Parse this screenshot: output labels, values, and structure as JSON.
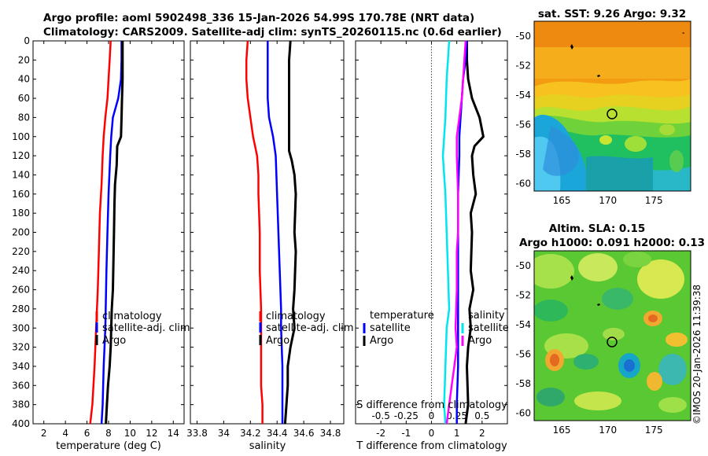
{
  "header": {
    "title_line1": "Argo profile: aoml 5902498_336 15-Jan-2026 54.99S 170.78E (NRT data)",
    "title_line2": "Climatology: CARS2009. Satellite-adj clim: synTS_20260115.nc (0.6d earlier)",
    "watermark": "©IMOS 20-Jan-2026 11:39:38"
  },
  "colors": {
    "climatology": "#ff0000",
    "satellite": "#0000ff",
    "argo": "#000000",
    "t_sat_diff": "#00e5ee",
    "s_diff": "#ff00ff",
    "zero_line": "#444444"
  },
  "chart_data": [
    {
      "type": "line",
      "name": "temperature-panel",
      "xlabel": "temperature (deg C)",
      "ylabel": "",
      "xlim": [
        1,
        15
      ],
      "ylim": [
        400,
        0
      ],
      "xticks": [
        "2",
        "4",
        "6",
        "8",
        "10",
        "12",
        "14"
      ],
      "xtick_values": [
        2,
        4,
        6,
        8,
        10,
        12,
        14
      ],
      "yticks": [
        "0",
        "20",
        "40",
        "60",
        "80",
        "100",
        "120",
        "140",
        "160",
        "180",
        "200",
        "220",
        "240",
        "260",
        "280",
        "300",
        "320",
        "340",
        "360",
        "380",
        "400"
      ],
      "ytick_values": [
        0,
        20,
        40,
        60,
        80,
        100,
        120,
        140,
        160,
        180,
        200,
        220,
        240,
        260,
        280,
        300,
        320,
        340,
        360,
        380,
        400
      ],
      "legend": [
        "climatology",
        "satellite-adj. clim",
        "Argo"
      ],
      "series": [
        {
          "name": "climatology",
          "color": "climatology",
          "x": [
            8.2,
            8.1,
            8.0,
            7.9,
            7.7,
            7.55,
            7.45,
            7.35,
            7.2,
            7.1,
            7.0,
            6.85,
            6.7,
            6.5,
            6.3
          ],
          "y": [
            0,
            20,
            40,
            60,
            80,
            100,
            120,
            150,
            180,
            220,
            260,
            300,
            340,
            380,
            400
          ]
        },
        {
          "name": "satellite-adj. clim",
          "color": "satellite",
          "x": [
            9.2,
            9.2,
            9.15,
            8.9,
            8.4,
            8.25,
            8.15,
            8.0,
            7.9,
            7.8,
            7.7,
            7.55,
            7.45,
            7.35
          ],
          "y": [
            0,
            20,
            40,
            60,
            80,
            100,
            120,
            160,
            200,
            240,
            300,
            340,
            380,
            400
          ]
        },
        {
          "name": "Argo",
          "color": "argo",
          "x": [
            9.3,
            9.3,
            9.3,
            9.25,
            9.2,
            9.15,
            8.8,
            8.75,
            8.6,
            8.55,
            8.5,
            8.45,
            8.4,
            8.3,
            8.25,
            8.2,
            8.1,
            7.95,
            7.85,
            7.75
          ],
          "y": [
            0,
            20,
            40,
            60,
            80,
            100,
            110,
            130,
            150,
            170,
            200,
            230,
            260,
            280,
            300,
            320,
            340,
            360,
            380,
            400
          ]
        }
      ]
    },
    {
      "type": "line",
      "name": "salinity-panel",
      "xlabel": "salinity",
      "ylabel": "",
      "xlim": [
        33.75,
        34.9
      ],
      "ylim": [
        400,
        0
      ],
      "xticks": [
        "33.8",
        "34",
        "34.2",
        "34.4",
        "34.6",
        "34.8"
      ],
      "xtick_values": [
        33.8,
        34.0,
        34.2,
        34.4,
        34.6,
        34.8
      ],
      "legend": [
        "climatology",
        "satellite-adj. clim",
        "Argo"
      ],
      "series": [
        {
          "name": "climatology",
          "color": "climatology",
          "x": [
            34.18,
            34.17,
            34.17,
            34.18,
            34.2,
            34.22,
            34.25,
            34.26,
            34.26,
            34.27,
            34.27,
            34.28,
            34.28,
            34.28,
            34.29,
            34.29
          ],
          "y": [
            0,
            20,
            40,
            60,
            80,
            100,
            120,
            140,
            160,
            200,
            240,
            280,
            320,
            360,
            380,
            400
          ]
        },
        {
          "name": "satellite-adj. clim",
          "color": "satellite",
          "x": [
            34.33,
            34.33,
            34.33,
            34.33,
            34.34,
            34.37,
            34.39,
            34.4,
            34.41,
            34.42,
            34.43,
            34.43,
            34.44,
            34.44,
            34.44
          ],
          "y": [
            0,
            20,
            40,
            60,
            80,
            100,
            120,
            160,
            200,
            240,
            280,
            300,
            340,
            380,
            400
          ]
        },
        {
          "name": "Argo",
          "color": "argo",
          "x": [
            34.5,
            34.49,
            34.49,
            34.49,
            34.49,
            34.49,
            34.49,
            34.51,
            34.53,
            34.54,
            34.53,
            34.54,
            34.53,
            34.52,
            34.53,
            34.5,
            34.48,
            34.48,
            34.47,
            34.46
          ],
          "y": [
            0,
            20,
            40,
            60,
            80,
            100,
            115,
            125,
            140,
            160,
            200,
            220,
            260,
            280,
            300,
            320,
            340,
            360,
            380,
            400
          ]
        }
      ]
    },
    {
      "type": "line",
      "name": "difference-panel",
      "xlabel": "T difference from climatology",
      "x2label": "S difference from climatology",
      "xlim": [
        -3,
        3
      ],
      "ylim": [
        400,
        0
      ],
      "xticks": [
        "-2",
        "-1",
        "0",
        "1",
        "2"
      ],
      "xtick_values": [
        -2,
        -1,
        0,
        1,
        2
      ],
      "x2ticks": [
        "-0.5",
        "-0.25",
        "0",
        "0.25",
        "0.5"
      ],
      "x2tick_values": [
        -2,
        -1,
        0,
        1,
        2
      ],
      "legend_left_title": "temperature",
      "legend_left": [
        "satellite",
        "Argo"
      ],
      "legend_right_title": "salinity",
      "legend_right": [
        "satellite",
        "Argo"
      ],
      "series": [
        {
          "name": "T satellite diff",
          "color": "t_sat_diff",
          "x": [
            0.7,
            0.65,
            0.6,
            0.55,
            0.5,
            0.45,
            0.5,
            0.55,
            0.6,
            0.65,
            0.7,
            0.6,
            0.55,
            0.5,
            0.55
          ],
          "y": [
            0,
            20,
            40,
            80,
            100,
            120,
            140,
            160,
            200,
            240,
            280,
            300,
            340,
            380,
            400
          ]
        },
        {
          "name": "T Argo diff",
          "color": "argo",
          "x": [
            1.4,
            1.4,
            1.45,
            1.6,
            1.9,
            2.05,
            1.7,
            1.6,
            1.65,
            1.75,
            1.55,
            1.6,
            1.55,
            1.65,
            1.5,
            1.55,
            1.45,
            1.4,
            1.45,
            1.35
          ],
          "y": [
            0,
            20,
            40,
            60,
            80,
            100,
            110,
            120,
            140,
            160,
            180,
            200,
            240,
            260,
            280,
            300,
            320,
            340,
            380,
            400
          ]
        },
        {
          "name": "S satellite diff",
          "color": "satellite",
          "x": [
            1.4,
            1.35,
            1.25,
            1.2,
            1.15,
            1.1,
            1.1,
            1.05,
            1.05,
            1.05,
            1.05,
            1.05,
            1.05,
            1.0,
            1.0
          ],
          "y": [
            0,
            20,
            40,
            60,
            80,
            100,
            120,
            160,
            200,
            240,
            280,
            320,
            340,
            380,
            400
          ]
        },
        {
          "name": "S Argo diff",
          "color": "s_diff",
          "x": [
            1.35,
            1.3,
            1.25,
            1.2,
            1.1,
            1.0,
            1.0,
            1.05,
            1.05,
            1.0,
            1.0,
            0.95,
            1.0,
            0.9,
            0.8,
            0.7,
            0.6
          ],
          "y": [
            0,
            20,
            40,
            60,
            80,
            100,
            120,
            160,
            200,
            220,
            260,
            300,
            320,
            340,
            360,
            380,
            400
          ]
        }
      ]
    },
    {
      "type": "heatmap",
      "name": "sst-map",
      "title": "sat. SST: 9.26 Argo: 9.32",
      "xlim": [
        162,
        179
      ],
      "ylim": [
        -60.5,
        -49
      ],
      "xticks": [
        "165",
        "170",
        "175"
      ],
      "xtick_values": [
        165,
        170,
        175
      ],
      "yticks": [
        "-50",
        "-52",
        "-54",
        "-56",
        "-58",
        "-60"
      ],
      "ytick_values": [
        -50,
        -52,
        -54,
        -56,
        -58,
        -60
      ],
      "marker": {
        "lon": 170.78,
        "lat": -54.99
      }
    },
    {
      "type": "heatmap",
      "name": "sla-map",
      "title_line1": "Altim. SLA: 0.15",
      "title_line2": "Argo h1000: 0.091 h2000: 0.13",
      "xlim": [
        162,
        179
      ],
      "ylim": [
        -60.5,
        -49
      ],
      "xticks": [
        "165",
        "170",
        "175"
      ],
      "xtick_values": [
        165,
        170,
        175
      ],
      "yticks": [
        "-50",
        "-52",
        "-54",
        "-56",
        "-58",
        "-60"
      ],
      "ytick_values": [
        -50,
        -52,
        -54,
        -56,
        -58,
        -60
      ],
      "marker": {
        "lon": 170.78,
        "lat": -54.99
      }
    }
  ]
}
